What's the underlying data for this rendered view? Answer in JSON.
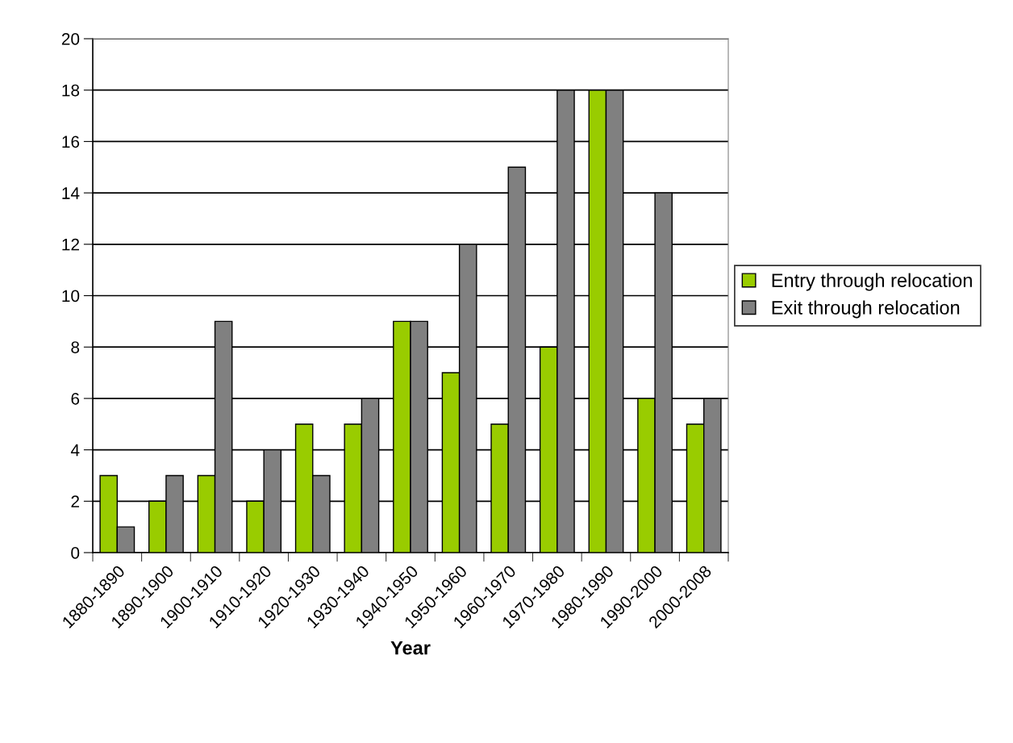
{
  "chart_data": {
    "type": "bar",
    "xlabel": "Year",
    "categories": [
      "1880-1890",
      "1890-1900",
      "1900-1910",
      "1910-1920",
      "1920-1930",
      "1930-1940",
      "1940-1950",
      "1950-1960",
      "1960-1970",
      "1970-1980",
      "1980-1990",
      "1990-2000",
      "2000-2008"
    ],
    "series": [
      {
        "name": "Entry through relocation",
        "color": "#99cc00",
        "values": [
          3,
          2,
          3,
          2,
          5,
          5,
          9,
          7,
          5,
          8,
          18,
          6,
          5
        ]
      },
      {
        "name": "Exit through relocation",
        "color": "#808080",
        "values": [
          1,
          3,
          9,
          4,
          3,
          6,
          9,
          12,
          15,
          18,
          18,
          14,
          6
        ]
      }
    ],
    "ylim": [
      0,
      20
    ],
    "yticks": [
      0,
      2,
      4,
      6,
      8,
      10,
      12,
      14,
      16,
      18,
      20
    ],
    "grid": "y",
    "legend": "right"
  }
}
